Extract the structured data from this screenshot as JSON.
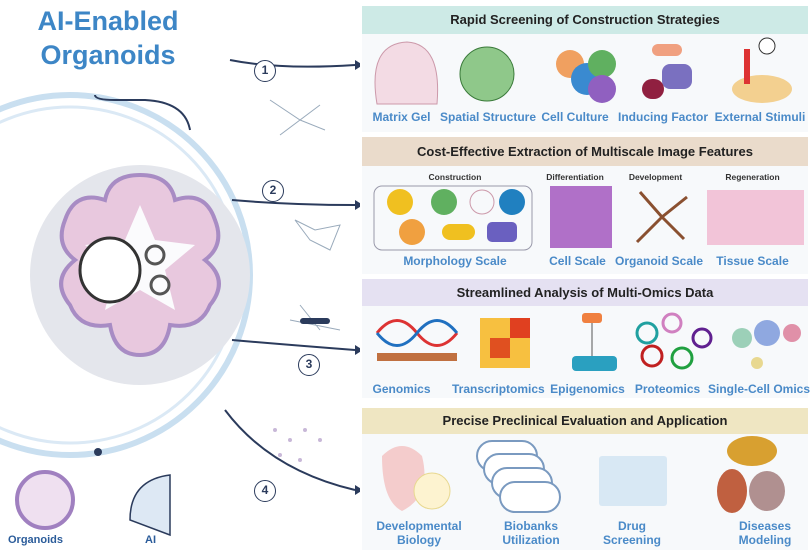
{
  "title": "AI-Enabled Organoids",
  "steps": [
    "1",
    "2",
    "3",
    "4"
  ],
  "bottom_labels": {
    "organoids": "Organoids",
    "ai": "AI"
  },
  "sections": [
    {
      "title": "Rapid Screening of Construction Strategies",
      "color": "#cdeae6",
      "items": [
        "Matrix Gel",
        "Spatial Structure",
        "Cell Culture",
        "Inducing Factor",
        "External Stimuli"
      ]
    },
    {
      "title": "Cost-Effective Extraction of Multiscale Image Features",
      "color": "#eadbcb",
      "subheads": [
        "Construction",
        "Differentiation",
        "Development",
        "Regeneration"
      ],
      "items": [
        "Morphology Scale",
        "Cell Scale",
        "Organoid Scale",
        "Tissue Scale"
      ]
    },
    {
      "title": "Streamlined Analysis of Multi-Omics Data",
      "color": "#e5e1f2",
      "items": [
        "Genomics",
        "Transcriptomics",
        "Epigenomics",
        "Proteomics",
        "Single-Cell Omics"
      ]
    },
    {
      "title": "Precise Preclinical Evaluation and Application",
      "color": "#efe6c2",
      "items": [
        "Developmental Biology",
        "Biobanks Utilization",
        "Drug Screening",
        "Diseases Modeling"
      ]
    }
  ]
}
